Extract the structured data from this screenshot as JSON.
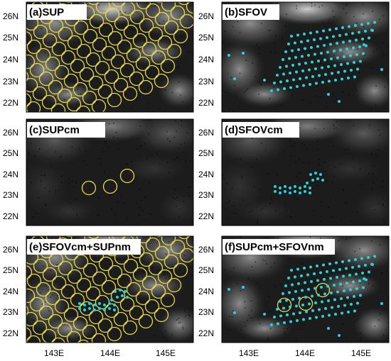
{
  "figure": {
    "x_ticks": [
      {
        "value": 143,
        "label": "143E"
      },
      {
        "value": 144,
        "label": "144E"
      },
      {
        "value": 145,
        "label": "145E"
      }
    ],
    "y_ticks": [
      {
        "value": 22,
        "label": "22N"
      },
      {
        "value": 23,
        "label": "23N"
      },
      {
        "value": 24,
        "label": "24N"
      },
      {
        "value": 25,
        "label": "25N"
      },
      {
        "value": 26,
        "label": "26N"
      }
    ],
    "lon_range": [
      142.5,
      145.5
    ],
    "lat_range": [
      21.5,
      26.5
    ],
    "colors": {
      "background": "#1c1c1c",
      "circle": "#e7d84a",
      "dot": "#22d6dc",
      "label_box": "#ffffff"
    }
  },
  "panels": [
    {
      "id": "a",
      "title": "(a)SUP",
      "show_circles": true,
      "show_dots": false
    },
    {
      "id": "b",
      "title": "(b)SFOV",
      "show_circles": false,
      "show_dots": true
    },
    {
      "id": "c",
      "title": "(c)SUPcm",
      "show_circles": true,
      "show_dots": false
    },
    {
      "id": "d",
      "title": "(d)SFOVcm",
      "show_circles": false,
      "show_dots": true
    },
    {
      "id": "e",
      "title": "(e)SFOVcm+SUPnm",
      "show_circles": true,
      "show_dots": true
    },
    {
      "id": "f",
      "title": "(f)SUPcm+SFOVnm",
      "show_circles": true,
      "show_dots": true
    }
  ]
}
